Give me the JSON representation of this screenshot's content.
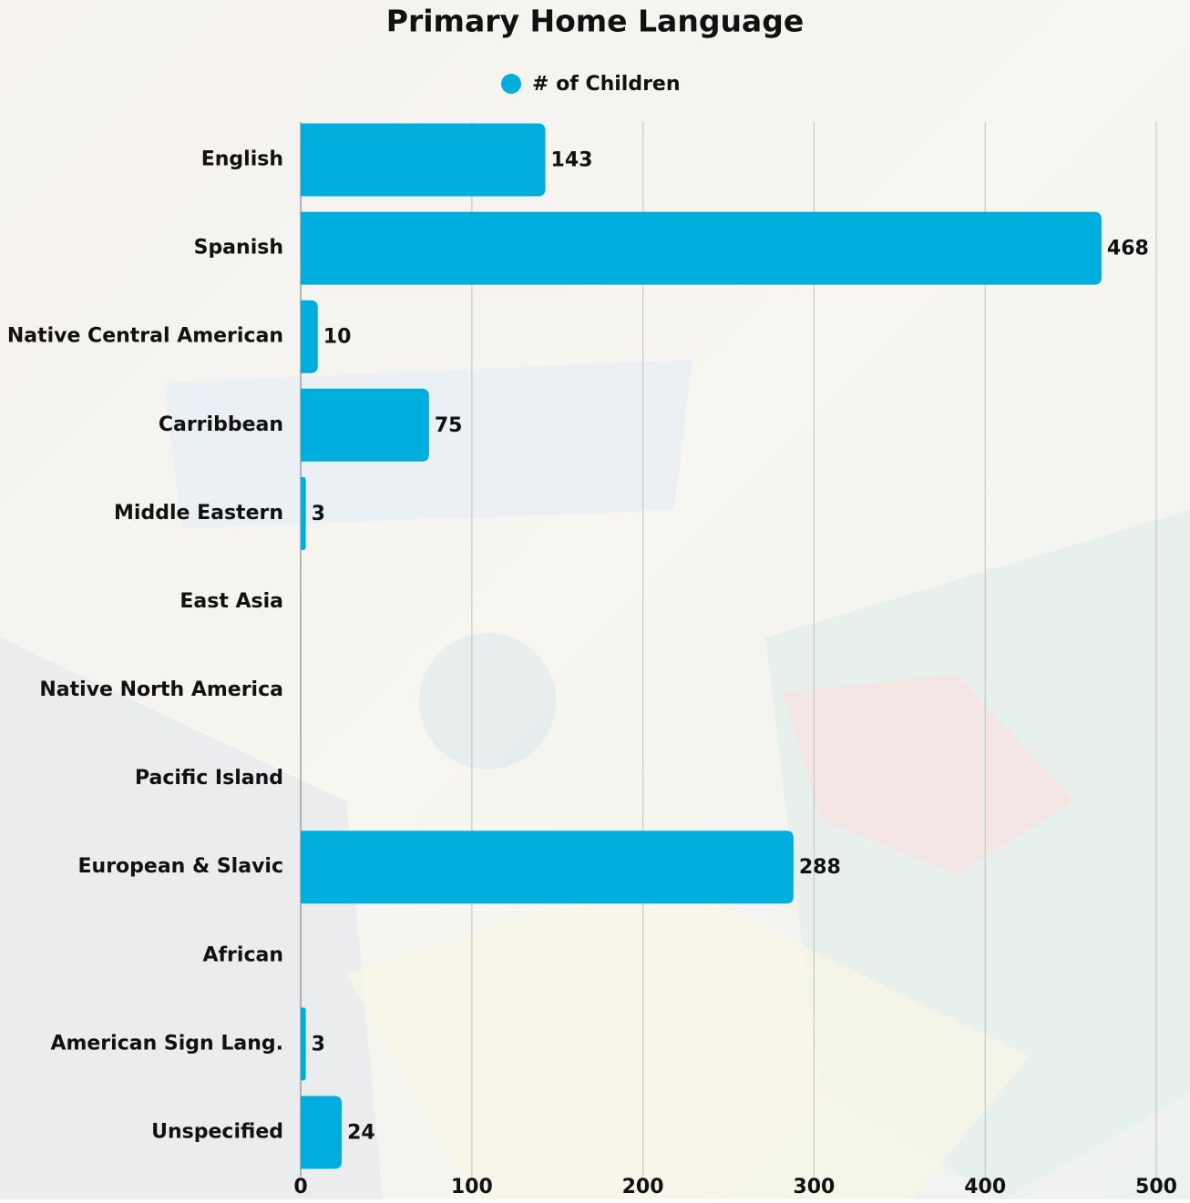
{
  "chart_data": {
    "type": "bar",
    "orientation": "horizontal",
    "title": "Primary Home Language",
    "categories": [
      "English",
      "Spanish",
      "Native Central American",
      "Carribbean",
      "Middle Eastern",
      "East Asia",
      "Native North America",
      "Pacific Island",
      "European & Slavic",
      "African",
      "American Sign Lang.",
      "Unspecified"
    ],
    "series": [
      {
        "name": "# of Children",
        "color": "#00aede",
        "values": [
          143,
          468,
          10,
          75,
          3,
          null,
          null,
          null,
          288,
          null,
          3,
          24
        ]
      }
    ],
    "xlim": [
      0,
      500
    ],
    "xticks": [
      0,
      100,
      200,
      300,
      400,
      500
    ],
    "grid": true,
    "legend": "top"
  }
}
